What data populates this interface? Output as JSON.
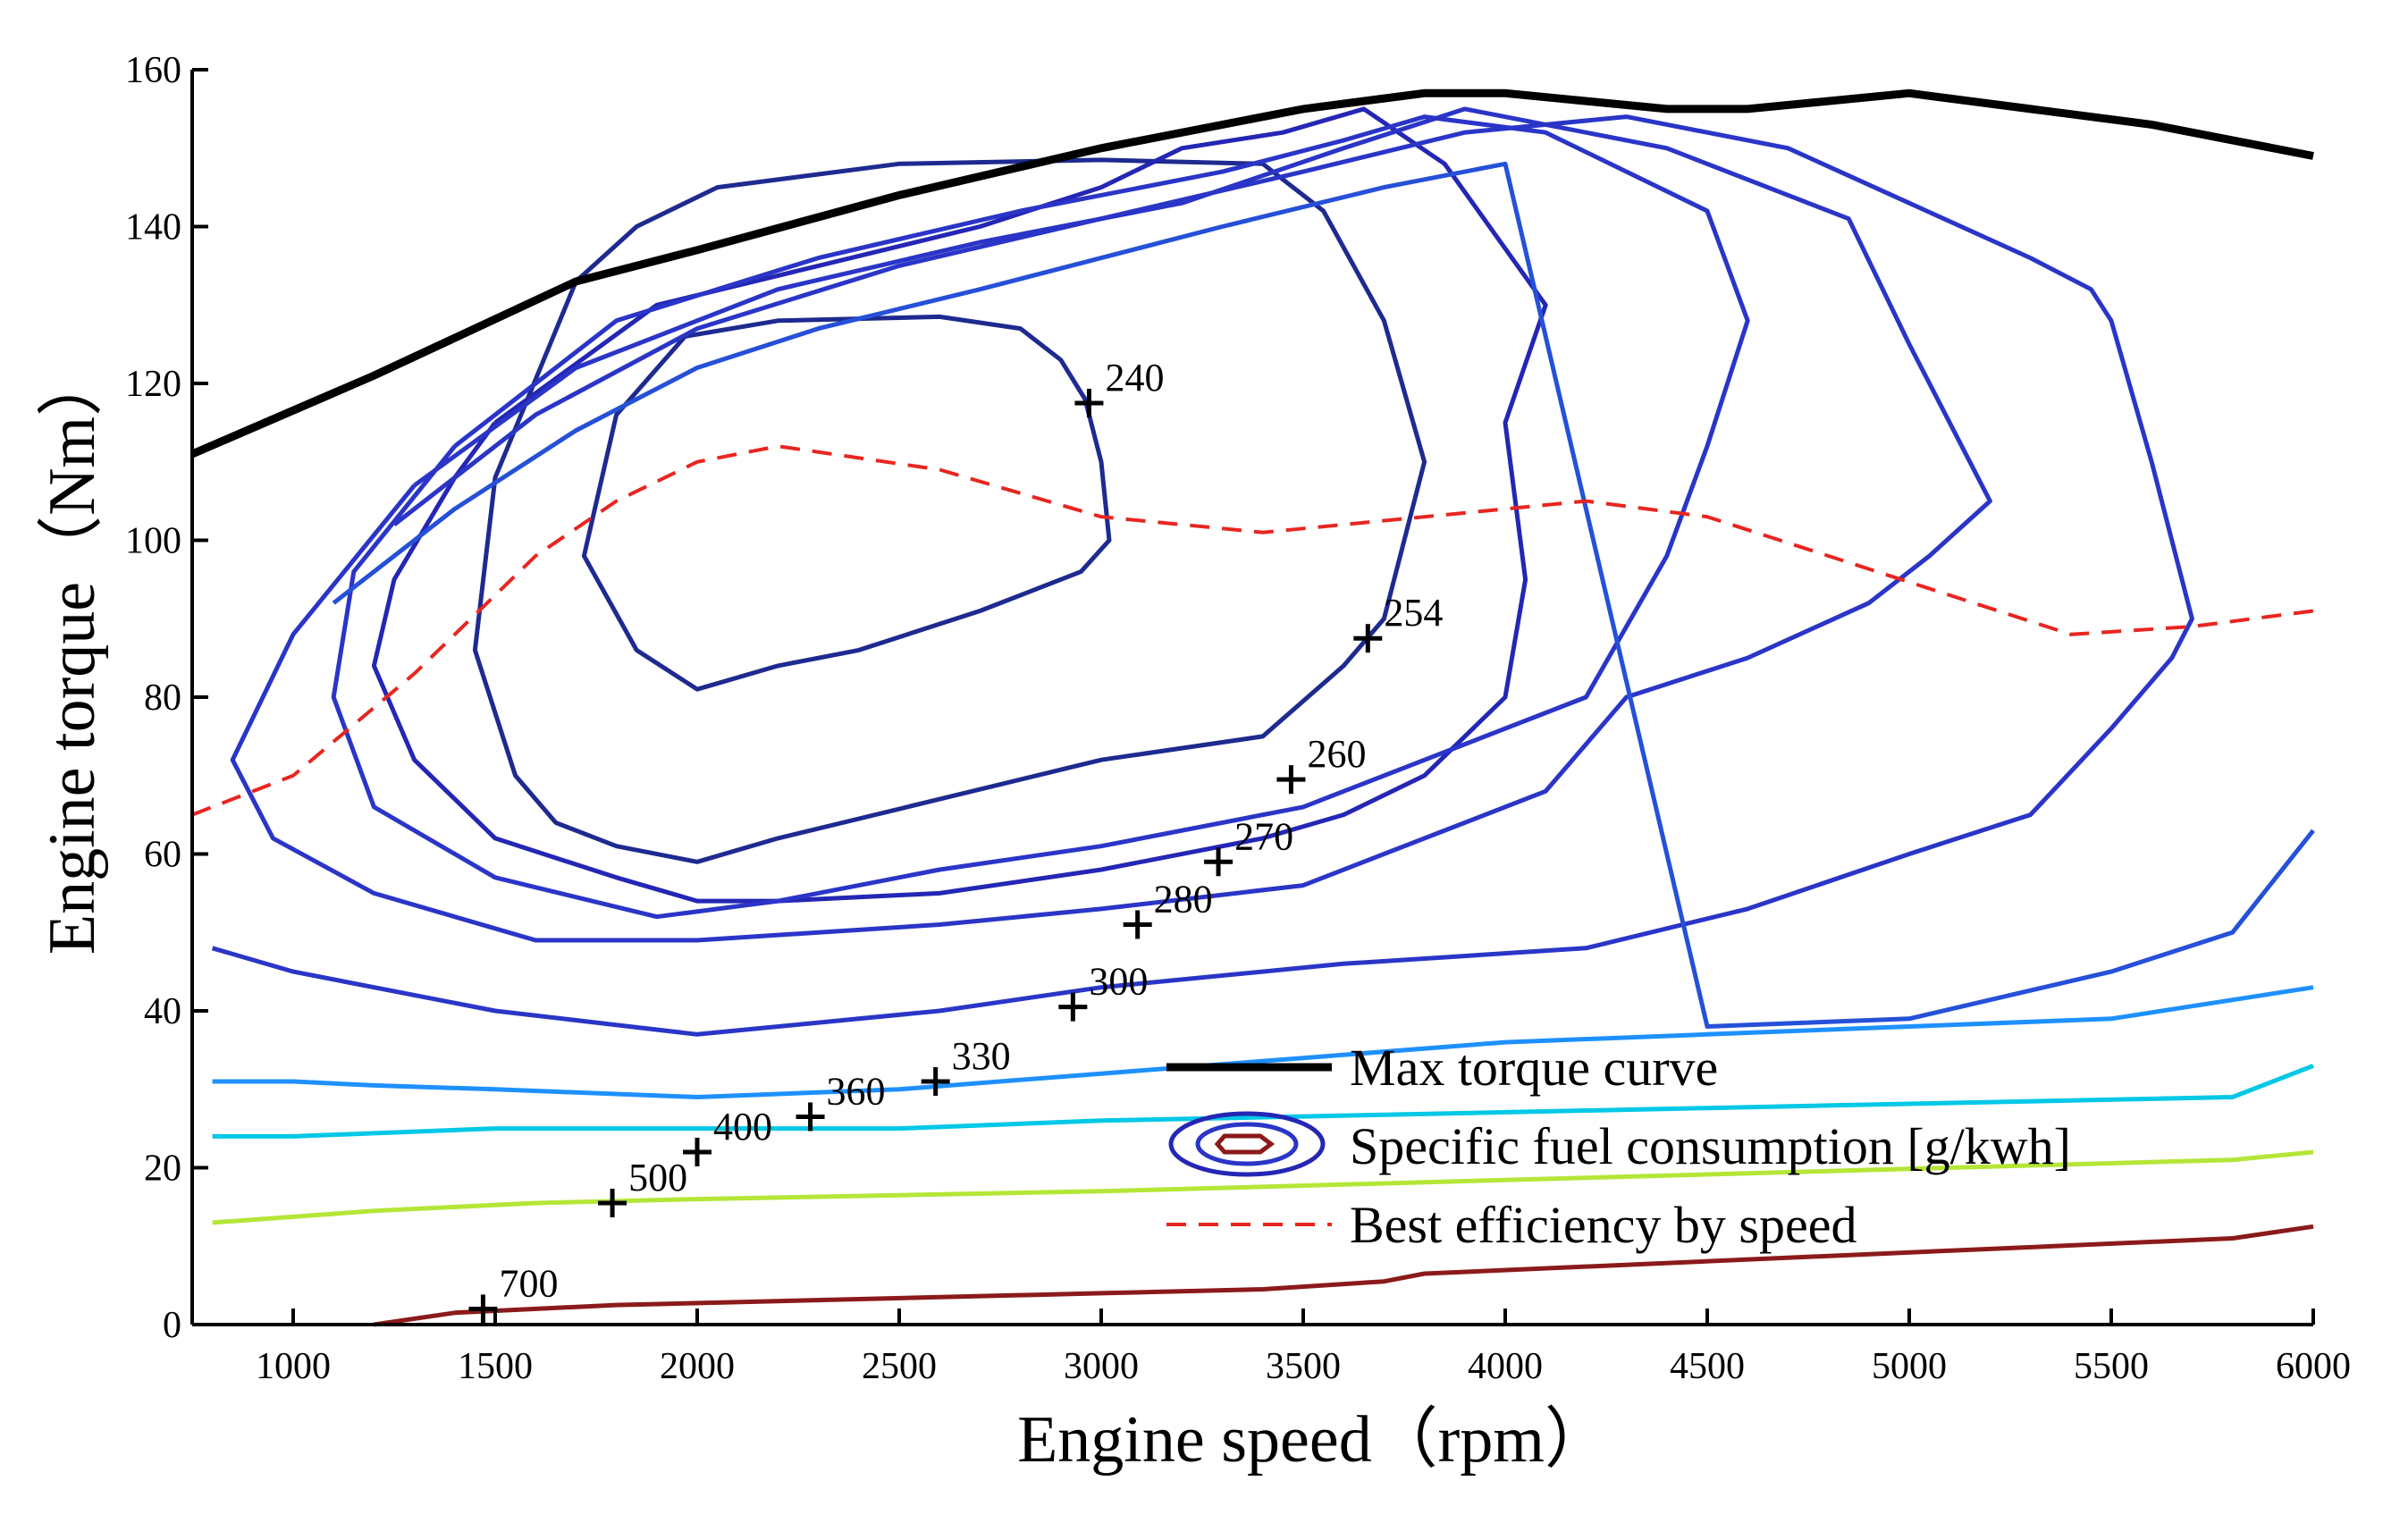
{
  "chart_data": {
    "type": "line",
    "title": "",
    "xlabel": "Engine speed（rpm）",
    "ylabel": "Engine torque（Nm）",
    "xlim": [
      750,
      6000
    ],
    "ylim": [
      0,
      160
    ],
    "x_ticks": [
      1000,
      1500,
      2000,
      2500,
      3000,
      3500,
      4000,
      4500,
      5000,
      5500,
      6000
    ],
    "y_ticks": [
      0,
      20,
      40,
      60,
      80,
      100,
      120,
      140,
      160
    ],
    "grid": false,
    "legend": [
      {
        "label": "Max torque curve",
        "style": "solid-black-thick"
      },
      {
        "label": "Specific fuel consumption [g/kwh]",
        "style": "contour-icon"
      },
      {
        "label": "Best efficiency by speed",
        "style": "dashed-red"
      }
    ],
    "max_torque_curve": {
      "name": "Max torque curve",
      "color": "#000000",
      "x": [
        750,
        1200,
        1700,
        2000,
        2500,
        3000,
        3500,
        3800,
        4000,
        4400,
        4600,
        5000,
        5300,
        5600,
        6000
      ],
      "y": [
        111,
        121,
        133,
        137,
        144,
        150,
        155,
        157,
        157,
        155,
        155,
        157,
        155,
        153,
        149
      ]
    },
    "best_efficiency": {
      "name": "Best efficiency by speed",
      "color": "#e8251f",
      "x": [
        750,
        1000,
        1300,
        1600,
        1800,
        2000,
        2200,
        2600,
        3000,
        3400,
        3800,
        4200,
        4500,
        4800,
        5100,
        5400,
        5700,
        6000
      ],
      "y": [
        65,
        70,
        83,
        98,
        105,
        110,
        112,
        109,
        103,
        101,
        103,
        105,
        103,
        98,
        93,
        88,
        89,
        91
      ]
    },
    "fuel_contours": [
      {
        "level": 240,
        "color": "#1e2a8f",
        "x": [
          1970,
          2200,
          2600,
          2800,
          2900,
          2960,
          3000,
          3020,
          2950,
          2700,
          2400,
          2200,
          2000,
          1850,
          1720,
          1800,
          1970
        ],
        "y": [
          126,
          128,
          128.5,
          127,
          123,
          118,
          110,
          100,
          96,
          91,
          86,
          84,
          81,
          86,
          98,
          116,
          126
        ]
      },
      {
        "level": 254,
        "color": "#1e2a8f",
        "x": [
          1700,
          1850,
          2050,
          2500,
          3000,
          3400,
          3550,
          3700,
          3800,
          3700,
          3600,
          3400,
          3000,
          2600,
          2200,
          2000,
          1800,
          1650,
          1550,
          1450,
          1500,
          1700
        ],
        "y": [
          133,
          140,
          145,
          148,
          148.5,
          148,
          142,
          128,
          110,
          90,
          84,
          75,
          72,
          67,
          62,
          59,
          61,
          64,
          70,
          86,
          108,
          133
        ]
      },
      {
        "level": 260,
        "color": "#2426b5",
        "x": [
          1500,
          1900,
          2300,
          2700,
          3000,
          3200,
          3450,
          3650,
          3850,
          4100,
          4000,
          4050,
          4000,
          3800,
          3600,
          3400,
          3000,
          2600,
          2200,
          2000,
          1800,
          1500,
          1300,
          1200,
          1250,
          1400,
          1500
        ],
        "y": [
          115,
          130,
          135,
          140,
          145,
          150,
          152,
          155,
          148,
          130,
          115,
          95,
          80,
          70,
          65,
          62,
          58,
          55,
          54,
          54,
          57,
          62,
          72,
          84,
          95,
          108,
          115
        ]
      },
      {
        "level": 270,
        "color": "#2a35c8",
        "x": [
          1400,
          1800,
          2300,
          2800,
          3300,
          3600,
          3800,
          4100,
          4500,
          4600,
          4500,
          4400,
          4200,
          3500,
          3000,
          2600,
          2200,
          1900,
          1500,
          1200,
          1100,
          1150,
          1400
        ],
        "y": [
          112,
          128,
          136,
          142,
          147,
          151,
          154,
          152,
          142,
          128,
          112,
          98,
          80,
          66,
          61,
          58,
          54,
          52,
          57,
          66,
          80,
          96,
          112
        ]
      },
      {
        "level": 280,
        "color": "#2a35c8",
        "x": [
          1300,
          1700,
          2200,
          2700,
          3200,
          3600,
          3900,
          4400,
          4850,
          5000,
          5200,
          5050,
          4900,
          4600,
          4300,
          4100,
          3500,
          3000,
          2600,
          2000,
          1600,
          1200,
          950,
          850,
          1000,
          1300
        ],
        "y": [
          107,
          122,
          132,
          138,
          143,
          150,
          155,
          150,
          141,
          125,
          105,
          98,
          92,
          85,
          80,
          68,
          56,
          53,
          51,
          49,
          49,
          55,
          62,
          72,
          88,
          107
        ]
      },
      {
        "level": 300,
        "color": "#2a35c8",
        "x": [
          1250,
          1600,
          2000,
          2500,
          3000,
          3500,
          3900,
          4300,
          4700,
          5000,
          5300,
          5450,
          5500,
          5600,
          5700,
          5650,
          5500,
          5300,
          5000,
          4600,
          4200,
          3600,
          3000,
          2600,
          2000,
          1500,
          1000,
          800
        ],
        "y": [
          102,
          116,
          127,
          135,
          141,
          147,
          152,
          154,
          150,
          143,
          136,
          132,
          128,
          110,
          90,
          85,
          76,
          65,
          60,
          53,
          48,
          46,
          43,
          40,
          37,
          40,
          45,
          48
        ]
      },
      {
        "level": 330,
        "color": "#2550d8",
        "x": [
          1100,
          1400,
          1700,
          2000,
          2300,
          2700,
          3000,
          3300,
          3700,
          4000,
          4500,
          5000,
          5500,
          5800,
          6000
        ],
        "y": [
          92,
          104,
          114,
          122,
          127,
          132,
          136,
          140,
          145,
          148,
          38,
          39,
          45,
          50,
          63
        ]
      },
      {
        "level": 360,
        "color": "#1e90ff",
        "x": [
          800,
          1000,
          1200,
          1500,
          2000,
          2500,
          3000,
          3500,
          4000,
          4500,
          5000,
          5500,
          6000
        ],
        "y": [
          31,
          31,
          30.5,
          30,
          29,
          30,
          32,
          34,
          36,
          37,
          38,
          39,
          43
        ]
      },
      {
        "level": 400,
        "color": "#00c8e6",
        "x": [
          800,
          1000,
          1500,
          2000,
          2500,
          3000,
          5800,
          6000
        ],
        "y": [
          24,
          24,
          25,
          25,
          25,
          26,
          29,
          33
        ]
      },
      {
        "level": 500,
        "color": "#b4e637",
        "x": [
          800,
          1200,
          1600,
          2000,
          2500,
          3000,
          5800,
          6000
        ],
        "y": [
          13,
          14.5,
          15.5,
          16,
          16.5,
          17,
          21,
          22
        ]
      },
      {
        "level": 700,
        "color": "#8b1a1a",
        "x": [
          1200,
          1400,
          1800,
          2200,
          2600,
          3000,
          3400,
          3700,
          3800,
          5800,
          6000
        ],
        "y": [
          0,
          1.5,
          2.5,
          3,
          3.5,
          4,
          4.5,
          5.5,
          6.5,
          11,
          12.5
        ]
      }
    ],
    "contour_labels": [
      {
        "text": "240",
        "x": 2970,
        "y": 117.5
      },
      {
        "text": "254",
        "x": 3660,
        "y": 87.5
      },
      {
        "text": "260",
        "x": 3470,
        "y": 69.5
      },
      {
        "text": "270",
        "x": 3290,
        "y": 59
      },
      {
        "text": "280",
        "x": 3090,
        "y": 51
      },
      {
        "text": "300",
        "x": 2930,
        "y": 40.5
      },
      {
        "text": "330",
        "x": 2590,
        "y": 31
      },
      {
        "text": "360",
        "x": 2280,
        "y": 26.5
      },
      {
        "text": "400",
        "x": 2000,
        "y": 22
      },
      {
        "text": "500",
        "x": 1790,
        "y": 15.5
      },
      {
        "text": "700",
        "x": 1470,
        "y": 2
      }
    ]
  }
}
